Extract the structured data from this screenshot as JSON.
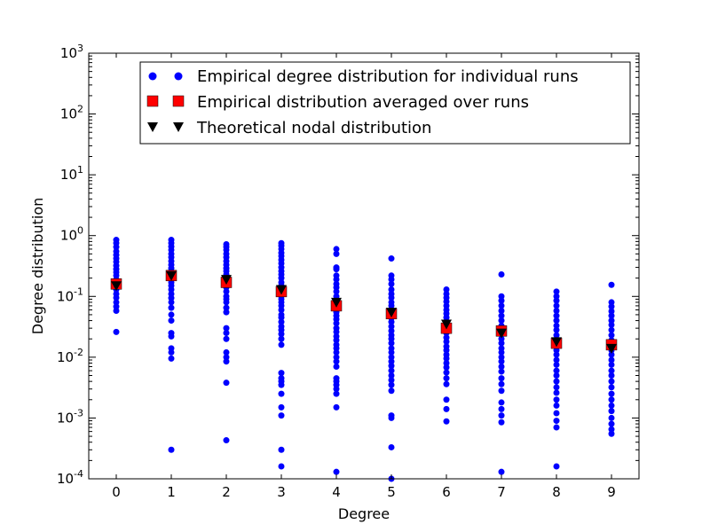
{
  "chart_data": {
    "type": "scatter",
    "title": "",
    "xlabel": "Degree",
    "ylabel": "Degree distribution",
    "yscale": "log",
    "xlim": [
      -0.5,
      9.5
    ],
    "ylim": [
      0.0001,
      1000
    ],
    "x_ticks": [
      0,
      1,
      2,
      3,
      4,
      5,
      6,
      7,
      8,
      9
    ],
    "y_ticks": [
      {
        "exp": "-4",
        "value": 0.0001
      },
      {
        "exp": "-3",
        "value": 0.001
      },
      {
        "exp": "-2",
        "value": 0.01
      },
      {
        "exp": "-1",
        "value": 0.1
      },
      {
        "exp": "0",
        "value": 1
      },
      {
        "exp": "1",
        "value": 10
      },
      {
        "exp": "2",
        "value": 100
      },
      {
        "exp": "3",
        "value": 1000
      }
    ],
    "legend": {
      "placement": "upper-right",
      "entries": [
        "Empirical degree distribution for individual runs",
        "Empirical distribution averaged over runs",
        "Theoretical nodal distribution"
      ]
    },
    "series": [
      {
        "name": "Empirical degree distribution for individual runs",
        "marker": "circle",
        "color": "#0000ff",
        "points": [
          {
            "x": 0,
            "values": [
              0.85,
              0.75,
              0.65,
              0.55,
              0.48,
              0.42,
              0.37,
              0.32,
              0.28,
              0.25,
              0.22,
              0.19,
              0.17,
              0.15,
              0.13,
              0.11,
              0.095,
              0.08,
              0.068,
              0.058,
              0.026
            ]
          },
          {
            "x": 1,
            "values": [
              0.85,
              0.75,
              0.66,
              0.58,
              0.5,
              0.44,
              0.38,
              0.33,
              0.29,
              0.26,
              0.23,
              0.2,
              0.17,
              0.15,
              0.13,
              0.11,
              0.094,
              0.08,
              0.065,
              0.05,
              0.04,
              0.025,
              0.022,
              0.014,
              0.012,
              0.0095,
              0.0003
            ]
          },
          {
            "x": 2,
            "values": [
              0.72,
              0.65,
              0.58,
              0.5,
              0.44,
              0.38,
              0.33,
              0.29,
              0.26,
              0.23,
              0.2,
              0.18,
              0.16,
              0.14,
              0.12,
              0.1,
              0.09,
              0.08,
              0.065,
              0.055,
              0.03,
              0.025,
              0.02,
              0.012,
              0.01,
              0.0085,
              0.0038,
              0.00043
            ]
          },
          {
            "x": 3,
            "values": [
              0.75,
              0.68,
              0.6,
              0.52,
              0.46,
              0.4,
              0.35,
              0.3,
              0.26,
              0.23,
              0.2,
              0.17,
              0.15,
              0.13,
              0.11,
              0.1,
              0.09,
              0.08,
              0.07,
              0.06,
              0.05,
              0.045,
              0.038,
              0.032,
              0.028,
              0.024,
              0.02,
              0.016,
              0.0055,
              0.0045,
              0.004,
              0.0035,
              0.0025,
              0.0015,
              0.0011,
              0.0003,
              0.00016
            ]
          },
          {
            "x": 4,
            "values": [
              0.6,
              0.5,
              0.3,
              0.28,
              0.22,
              0.19,
              0.16,
              0.14,
              0.12,
              0.1,
              0.085,
              0.075,
              0.065,
              0.055,
              0.048,
              0.042,
              0.036,
              0.03,
              0.026,
              0.022,
              0.019,
              0.016,
              0.014,
              0.012,
              0.01,
              0.0085,
              0.007,
              0.0045,
              0.004,
              0.0035,
              0.003,
              0.0025,
              0.0015,
              0.00013
            ]
          },
          {
            "x": 5,
            "values": [
              0.42,
              0.22,
              0.19,
              0.16,
              0.13,
              0.11,
              0.095,
              0.08,
              0.07,
              0.06,
              0.05,
              0.044,
              0.038,
              0.032,
              0.027,
              0.023,
              0.02,
              0.017,
              0.014,
              0.012,
              0.01,
              0.0085,
              0.0072,
              0.006,
              0.005,
              0.0042,
              0.0035,
              0.0028,
              0.0011,
              0.001,
              0.00033,
              0.0001
            ]
          },
          {
            "x": 6,
            "values": [
              0.13,
              0.11,
              0.095,
              0.082,
              0.07,
              0.06,
              0.052,
              0.045,
              0.039,
              0.034,
              0.029,
              0.025,
              0.021,
              0.018,
              0.015,
              0.013,
              0.011,
              0.0095,
              0.008,
              0.0068,
              0.0056,
              0.0045,
              0.0036,
              0.002,
              0.0014,
              0.00088
            ]
          },
          {
            "x": 7,
            "values": [
              0.23,
              0.1,
              0.085,
              0.07,
              0.058,
              0.048,
              0.04,
              0.033,
              0.028,
              0.024,
              0.02,
              0.017,
              0.014,
              0.012,
              0.01,
              0.0085,
              0.007,
              0.0058,
              0.0045,
              0.0036,
              0.0028,
              0.0018,
              0.0014,
              0.0011,
              0.00085,
              0.00013
            ]
          },
          {
            "x": 8,
            "values": [
              0.12,
              0.1,
              0.085,
              0.07,
              0.058,
              0.048,
              0.04,
              0.033,
              0.028,
              0.023,
              0.019,
              0.016,
              0.013,
              0.011,
              0.009,
              0.0075,
              0.006,
              0.005,
              0.004,
              0.0032,
              0.0026,
              0.002,
              0.0016,
              0.0012,
              0.0009,
              0.0007,
              0.00016
            ]
          },
          {
            "x": 9,
            "values": [
              0.155,
              0.08,
              0.068,
              0.057,
              0.048,
              0.04,
              0.034,
              0.028,
              0.023,
              0.019,
              0.016,
              0.013,
              0.011,
              0.009,
              0.0075,
              0.006,
              0.005,
              0.004,
              0.0032,
              0.0025,
              0.002,
              0.0016,
              0.0013,
              0.001,
              0.0008,
              0.00065,
              0.00055
            ]
          }
        ]
      },
      {
        "name": "Empirical distribution averaged over runs",
        "marker": "square",
        "color": "#ff0000",
        "x": [
          0,
          1,
          2,
          3,
          4,
          5,
          6,
          7,
          8,
          9
        ],
        "values": [
          0.16,
          0.22,
          0.17,
          0.12,
          0.07,
          0.052,
          0.03,
          0.027,
          0.017,
          0.016
        ]
      },
      {
        "name": "Theoretical nodal distribution",
        "marker": "triangle-down",
        "color": "#000000",
        "x": [
          0,
          1,
          2,
          3,
          4,
          5,
          6,
          7,
          8,
          9
        ],
        "values": [
          0.15,
          0.22,
          0.19,
          0.13,
          0.08,
          0.055,
          0.035,
          0.025,
          0.018,
          0.014
        ]
      }
    ]
  }
}
